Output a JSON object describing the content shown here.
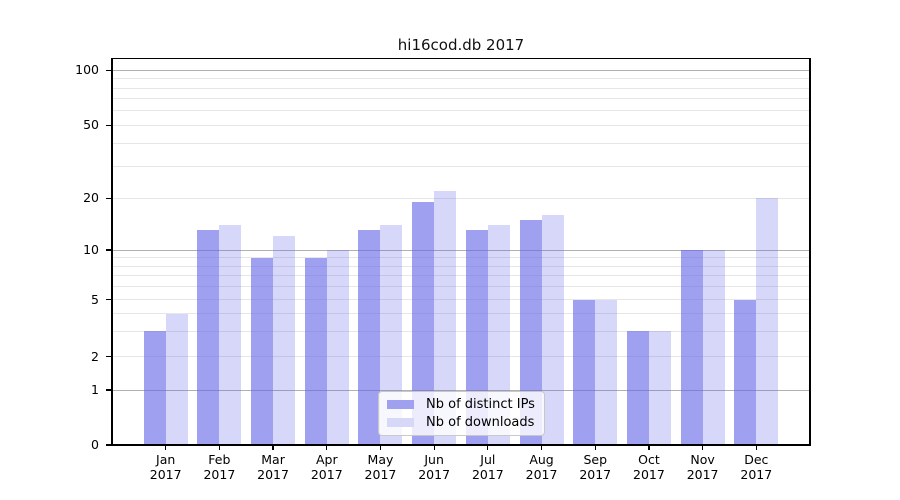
{
  "title": "hi16cod.db 2017",
  "legend": {
    "items": [
      {
        "label": "Nb of distinct IPs"
      },
      {
        "label": "Nb of downloads"
      }
    ]
  },
  "colors": {
    "bar_distinct_ips": "#a0a0f0",
    "bar_downloads": "#d7d7f8",
    "bar_distinct_ips_rgba": "rgba(102,102,230,0.62)",
    "bar_downloads_rgba": "rgba(102,102,230,0.26)",
    "gridline_major": "#b0b0b0",
    "gridline_minor": "#e6e6e6",
    "axis": "#000000"
  },
  "chart_data": {
    "type": "bar",
    "title": "hi16cod.db 2017",
    "x": {
      "months": [
        "Jan",
        "Feb",
        "Mar",
        "Apr",
        "May",
        "Jun",
        "Jul",
        "Aug",
        "Sep",
        "Oct",
        "Nov",
        "Dec"
      ],
      "year": "2017"
    },
    "y_axis": {
      "scale": "log-like",
      "tick_labels": [
        0,
        1,
        2,
        5,
        10,
        20,
        50,
        100
      ],
      "major_gridlines": [
        1,
        10,
        100
      ],
      "minor_gridlines": [
        2,
        3,
        4,
        5,
        6,
        7,
        8,
        9,
        20,
        30,
        40,
        50,
        60,
        70,
        80,
        90
      ],
      "range_max": 107
    },
    "series": [
      {
        "name": "Nb of distinct IPs",
        "values": [
          3,
          13,
          9,
          9,
          13,
          19,
          13,
          15,
          5,
          3,
          10,
          5
        ]
      },
      {
        "name": "Nb of downloads",
        "values": [
          4,
          14,
          12,
          10,
          14,
          22,
          14,
          16,
          5,
          3,
          10,
          20
        ]
      }
    ],
    "legend_position": "bottom-center",
    "grid": true
  }
}
